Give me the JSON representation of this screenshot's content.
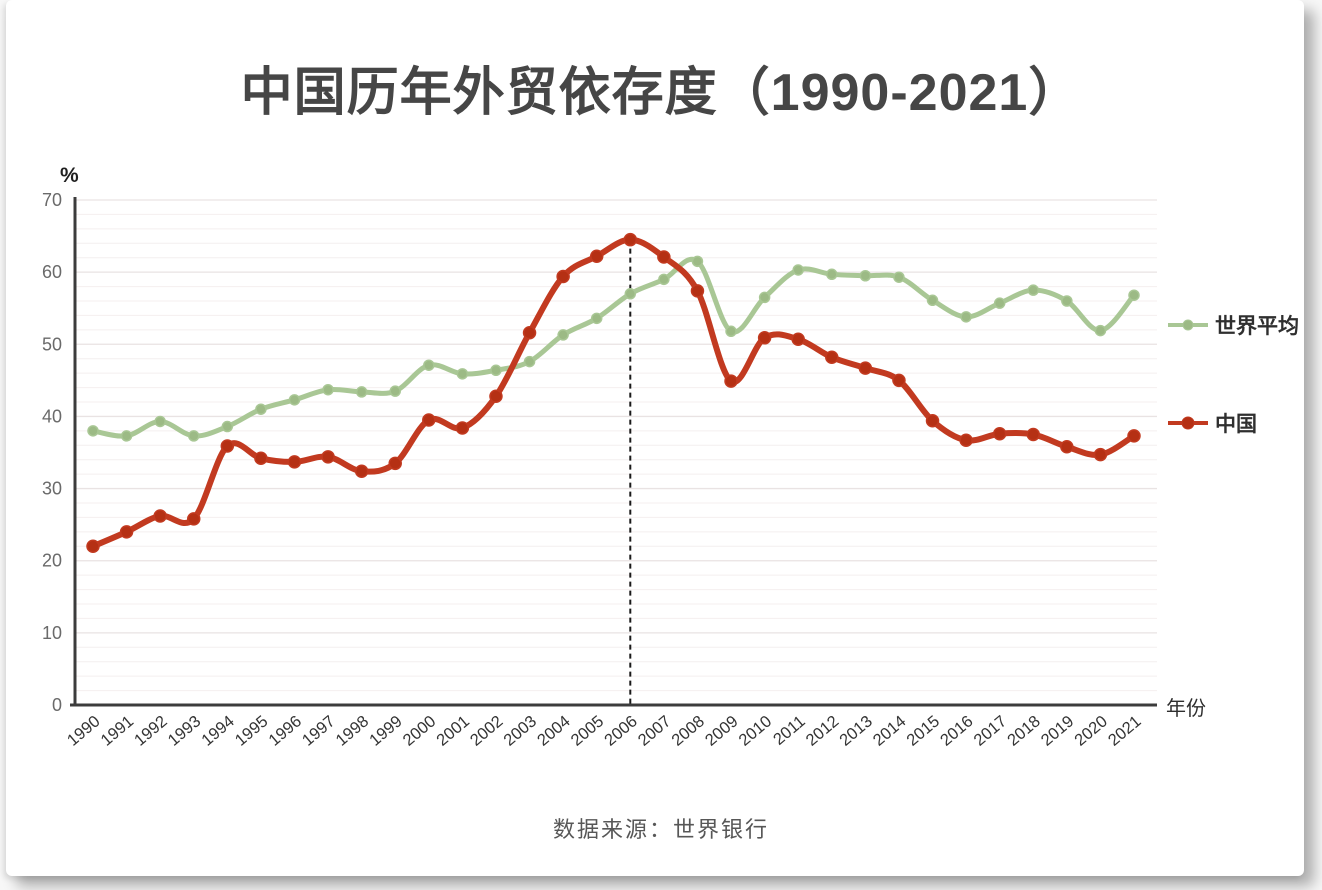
{
  "title": "中国历年外贸依存度（1990-2021）",
  "y_axis_unit": "%",
  "x_axis_label": "年份",
  "source": "数据来源：世界银行",
  "legend": [
    {
      "label": "世界平均",
      "color": "#a9c795",
      "marker_color": "#9cba85"
    },
    {
      "label": "中国",
      "color": "#c23a20",
      "marker_color": "#b53014"
    }
  ],
  "chart_data": {
    "type": "line",
    "title": "中国历年外贸依存度（1990-2021）",
    "xlabel": "年份",
    "ylabel": "%",
    "ylim": [
      0,
      70
    ],
    "yticks": [
      0,
      10,
      20,
      30,
      40,
      50,
      60,
      70
    ],
    "minor_grid_step": 2,
    "grid": "horizontal-faint",
    "legend_position": "right",
    "categories": [
      "1990",
      "1991",
      "1992",
      "1993",
      "1994",
      "1995",
      "1996",
      "1997",
      "1998",
      "1999",
      "2000",
      "2001",
      "2002",
      "2003",
      "2004",
      "2005",
      "2006",
      "2007",
      "2008",
      "2009",
      "2010",
      "2011",
      "2012",
      "2013",
      "2014",
      "2015",
      "2016",
      "2017",
      "2018",
      "2019",
      "2020",
      "2021"
    ],
    "series": [
      {
        "id": "world-average",
        "name": "世界平均",
        "color": "#a9c795",
        "marker_color": "#9cba85",
        "values": [
          38,
          37.3,
          39.3,
          37.3,
          38.6,
          41,
          42.3,
          43.7,
          43.4,
          43.5,
          47.1,
          45.9,
          46.4,
          47.6,
          51.3,
          53.6,
          57,
          59,
          61.5,
          51.8,
          56.5,
          60.3,
          59.7,
          59.5,
          59.3,
          56.1,
          53.8,
          55.7,
          57.5,
          56,
          51.9,
          56.8
        ]
      },
      {
        "id": "china",
        "name": "中国",
        "color": "#c23a20",
        "marker_color": "#b53014",
        "values": [
          22,
          24,
          26.2,
          25.8,
          35.9,
          34.2,
          33.7,
          34.4,
          32.4,
          33.5,
          39.5,
          38.4,
          42.8,
          51.6,
          59.4,
          62.2,
          64.5,
          62.1,
          57.4,
          44.9,
          50.9,
          50.7,
          48.2,
          46.7,
          45,
          39.4,
          36.7,
          37.6,
          37.5,
          35.8,
          34.7,
          37.3
        ]
      }
    ],
    "annotations": [
      {
        "type": "vline-dashed",
        "at_category": "2006",
        "from_value": 64.5,
        "to_value": 0,
        "color": "#1a1a1a"
      }
    ]
  }
}
